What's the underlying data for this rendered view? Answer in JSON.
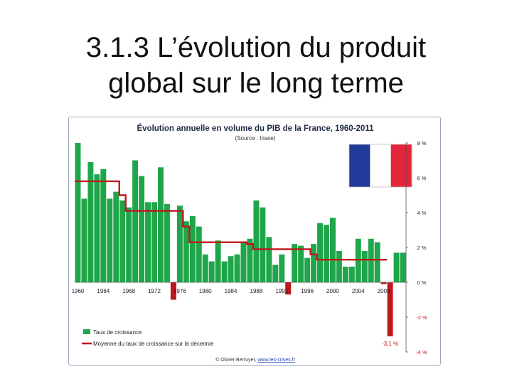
{
  "slide": {
    "title_line1": "3.1.3 L’évolution du produit",
    "title_line2": "global sur le long terme"
  },
  "chart_data": {
    "type": "bar",
    "title": "Évolution annuelle en volume du PIB de la France, 1960-2011",
    "subtitle": "(Source : Insee)",
    "credit_prefix": "© Olivier Berruyer, ",
    "credit_link": "www.les-crises.fr",
    "x": [
      1960,
      1961,
      1962,
      1963,
      1964,
      1965,
      1966,
      1967,
      1968,
      1969,
      1970,
      1971,
      1972,
      1973,
      1974,
      1975,
      1976,
      1977,
      1978,
      1979,
      1980,
      1981,
      1982,
      1983,
      1984,
      1985,
      1986,
      1987,
      1988,
      1989,
      1990,
      1991,
      1992,
      1993,
      1994,
      1995,
      1996,
      1997,
      1998,
      1999,
      2000,
      2001,
      2002,
      2003,
      2004,
      2005,
      2006,
      2007,
      2008,
      2009,
      2010,
      2011
    ],
    "x_tick_labels": [
      "1960",
      "1964",
      "1968",
      "1972",
      "1976",
      "1980",
      "1984",
      "1988",
      "1992",
      "1996",
      "2000",
      "2004",
      "2008"
    ],
    "y_tick_labels": [
      "8 %",
      "6 %",
      "4 %",
      "2 %",
      "0 %",
      "-2 %",
      "-4 %"
    ],
    "y_ticks": [
      8,
      6,
      4,
      2,
      0,
      -2,
      -4
    ],
    "ylim": [
      -4,
      8
    ],
    "grid": false,
    "series": [
      {
        "name": "Taux de croissance",
        "kind": "bar",
        "color_positive": "#1fa64a",
        "color_negative": "#c0161c",
        "values": [
          8.0,
          4.8,
          6.9,
          6.2,
          6.5,
          4.8,
          5.2,
          4.7,
          4.3,
          7.0,
          6.1,
          4.6,
          4.6,
          6.6,
          4.5,
          -1.0,
          4.4,
          3.5,
          3.8,
          3.2,
          1.6,
          1.2,
          2.4,
          1.2,
          1.5,
          1.6,
          2.3,
          2.5,
          4.7,
          4.3,
          2.6,
          1.0,
          1.6,
          -0.7,
          2.2,
          2.1,
          1.4,
          2.2,
          3.4,
          3.3,
          3.7,
          1.8,
          0.9,
          0.9,
          2.5,
          1.8,
          2.5,
          2.3,
          -0.1,
          -3.1,
          1.7,
          1.7
        ]
      },
      {
        "name": "Moyenne du taux de croissance sur la décennie",
        "kind": "step-line",
        "color": "#c0161c",
        "segments": [
          {
            "from": 1960,
            "to": 1967,
            "value": 5.8
          },
          {
            "from": 1967,
            "to": 1968,
            "value": 5.0
          },
          {
            "from": 1968,
            "to": 1977,
            "value": 4.1
          },
          {
            "from": 1977,
            "to": 1978,
            "value": 3.2
          },
          {
            "from": 1978,
            "to": 1987,
            "value": 2.3
          },
          {
            "from": 1987,
            "to": 1988,
            "value": 2.2
          },
          {
            "from": 1988,
            "to": 1997,
            "value": 1.9
          },
          {
            "from": 1997,
            "to": 1998,
            "value": 1.6
          },
          {
            "from": 1998,
            "to": 2009,
            "value": 1.3
          }
        ]
      }
    ],
    "annotation": {
      "text": "-3,1 %",
      "x": 2009,
      "y": -3.1
    },
    "legend_position": "bottom-left",
    "flag_colors": [
      "#1f3a99",
      "#ffffff",
      "#e3263a"
    ]
  }
}
